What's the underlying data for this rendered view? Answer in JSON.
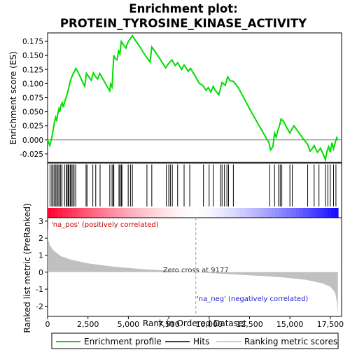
{
  "chart_data": {
    "type": "line",
    "title": "Enrichment plot:",
    "subtitle": "PROTEIN_TYROSINE_KINASE_ACTIVITY",
    "top_panel": {
      "ylabel": "Enrichment score (ES)",
      "ylim": [
        -0.04,
        0.19
      ],
      "yticks": [
        "-0.025",
        "0.000",
        "0.025",
        "0.050",
        "0.075",
        "0.100",
        "0.125",
        "0.150",
        "0.175"
      ],
      "ytick_values": [
        -0.025,
        0,
        0.025,
        0.05,
        0.075,
        0.1,
        0.125,
        0.15,
        0.175
      ],
      "series_color": "#00dd00",
      "es_points": [
        [
          0,
          0.0
        ],
        [
          140,
          -0.01
        ],
        [
          250,
          0.003
        ],
        [
          300,
          0.01
        ],
        [
          380,
          0.024
        ],
        [
          430,
          0.033
        ],
        [
          500,
          0.04
        ],
        [
          560,
          0.033
        ],
        [
          620,
          0.045
        ],
        [
          700,
          0.055
        ],
        [
          760,
          0.05
        ],
        [
          830,
          0.062
        ],
        [
          900,
          0.066
        ],
        [
          980,
          0.058
        ],
        [
          1060,
          0.068
        ],
        [
          1130,
          0.074
        ],
        [
          1200,
          0.08
        ],
        [
          1280,
          0.089
        ],
        [
          1350,
          0.097
        ],
        [
          1420,
          0.106
        ],
        [
          1500,
          0.112
        ],
        [
          1580,
          0.118
        ],
        [
          1660,
          0.121
        ],
        [
          1740,
          0.127
        ],
        [
          1850,
          0.122
        ],
        [
          2000,
          0.113
        ],
        [
          2150,
          0.104
        ],
        [
          2300,
          0.095
        ],
        [
          2400,
          0.118
        ],
        [
          2550,
          0.112
        ],
        [
          2700,
          0.106
        ],
        [
          2830,
          0.119
        ],
        [
          2950,
          0.113
        ],
        [
          3100,
          0.108
        ],
        [
          3230,
          0.118
        ],
        [
          3350,
          0.112
        ],
        [
          3600,
          0.099
        ],
        [
          3850,
          0.087
        ],
        [
          3900,
          0.099
        ],
        [
          3990,
          0.094
        ],
        [
          4040,
          0.12
        ],
        [
          4100,
          0.15
        ],
        [
          4200,
          0.144
        ],
        [
          4300,
          0.142
        ],
        [
          4400,
          0.158
        ],
        [
          4480,
          0.153
        ],
        [
          4560,
          0.175
        ],
        [
          4700,
          0.169
        ],
        [
          4850,
          0.163
        ],
        [
          4950,
          0.172
        ],
        [
          5050,
          0.177
        ],
        [
          5150,
          0.181
        ],
        [
          5250,
          0.185
        ],
        [
          5450,
          0.176
        ],
        [
          5700,
          0.166
        ],
        [
          6000,
          0.152
        ],
        [
          6150,
          0.146
        ],
        [
          6350,
          0.138
        ],
        [
          6450,
          0.165
        ],
        [
          6700,
          0.155
        ],
        [
          7000,
          0.142
        ],
        [
          7300,
          0.128
        ],
        [
          7500,
          0.136
        ],
        [
          7700,
          0.142
        ],
        [
          7900,
          0.132
        ],
        [
          8050,
          0.137
        ],
        [
          8300,
          0.125
        ],
        [
          8450,
          0.133
        ],
        [
          8700,
          0.122
        ],
        [
          8850,
          0.127
        ],
        [
          9100,
          0.115
        ],
        [
          9400,
          0.1
        ],
        [
          9600,
          0.097
        ],
        [
          9800,
          0.088
        ],
        [
          9950,
          0.093
        ],
        [
          10100,
          0.085
        ],
        [
          10250,
          0.095
        ],
        [
          10400,
          0.087
        ],
        [
          10600,
          0.08
        ],
        [
          10800,
          0.102
        ],
        [
          11000,
          0.097
        ],
        [
          11150,
          0.112
        ],
        [
          11300,
          0.105
        ],
        [
          11500,
          0.104
        ],
        [
          11800,
          0.093
        ],
        [
          12200,
          0.072
        ],
        [
          12600,
          0.05
        ],
        [
          13000,
          0.03
        ],
        [
          13400,
          0.01
        ],
        [
          13700,
          -0.005
        ],
        [
          13800,
          -0.018
        ],
        [
          13950,
          -0.012
        ],
        [
          14050,
          0.012
        ],
        [
          14150,
          0.005
        ],
        [
          14250,
          0.016
        ],
        [
          14350,
          0.025
        ],
        [
          14450,
          0.037
        ],
        [
          14600,
          0.033
        ],
        [
          14800,
          0.022
        ],
        [
          15000,
          0.012
        ],
        [
          15100,
          0.018
        ],
        [
          15250,
          0.025
        ],
        [
          15500,
          0.015
        ],
        [
          15800,
          0.003
        ],
        [
          16100,
          -0.008
        ],
        [
          16250,
          -0.02
        ],
        [
          16400,
          -0.015
        ],
        [
          16500,
          -0.01
        ],
        [
          16700,
          -0.022
        ],
        [
          16900,
          -0.015
        ],
        [
          17100,
          -0.028
        ],
        [
          17200,
          -0.035
        ],
        [
          17300,
          -0.02
        ],
        [
          17400,
          -0.012
        ],
        [
          17500,
          -0.022
        ],
        [
          17600,
          -0.005
        ],
        [
          17700,
          -0.016
        ],
        [
          17800,
          -0.005
        ],
        [
          17900,
          0.004
        ],
        [
          17950,
          0.0
        ]
      ]
    },
    "hits_panel": {
      "hit_positions": [
        150,
        260,
        340,
        420,
        510,
        580,
        650,
        730,
        810,
        890,
        1050,
        1160,
        1210,
        1280,
        1330,
        1410,
        1480,
        1560,
        1640,
        1740,
        2380,
        2440,
        2800,
        2980,
        3250,
        3850,
        3990,
        4070,
        4100,
        4420,
        4480,
        4560,
        4600,
        4990,
        5130,
        5250,
        6150,
        6450,
        7350,
        7500,
        7600,
        7720,
        8050,
        8450,
        8800,
        9650,
        10000,
        10250,
        10700,
        10800,
        10950,
        11100,
        11200,
        11500,
        13750,
        14050,
        14300,
        14400,
        14500,
        15000,
        15150,
        16100,
        16500,
        16800,
        17200,
        17350,
        17500,
        17700,
        17850
      ]
    },
    "bottom_panel": {
      "ylabel": "Ranked list metric (PreRanked)",
      "xlabel": "Rank in Ordered Dataset",
      "ylim": [
        -2.6,
        3.2
      ],
      "yticks": [
        "-2",
        "-1",
        "0",
        "1",
        "2",
        "3"
      ],
      "ytick_values": [
        -2,
        -1,
        0,
        1,
        2,
        3
      ],
      "xlim": [
        0,
        18200
      ],
      "xticks": [
        "0",
        "2,500",
        "5,000",
        "7,500",
        "10,000",
        "12,500",
        "15,000",
        "17,500"
      ],
      "xtick_values": [
        0,
        2500,
        5000,
        7500,
        10000,
        12500,
        15000,
        17500
      ],
      "zero_cross_label": "Zero cross at 9177",
      "zero_cross": 9177,
      "pos_label": "'na_pos' (positively correlated)",
      "neg_label": "'na_neg' (negatively correlated)",
      "metric_points": [
        [
          0,
          2.7
        ],
        [
          40,
          1.9
        ],
        [
          150,
          1.55
        ],
        [
          400,
          1.25
        ],
        [
          800,
          0.95
        ],
        [
          1500,
          0.72
        ],
        [
          2500,
          0.52
        ],
        [
          4000,
          0.33
        ],
        [
          6000,
          0.17
        ],
        [
          8000,
          0.06
        ],
        [
          9177,
          0.0
        ],
        [
          10500,
          -0.08
        ],
        [
          12500,
          -0.18
        ],
        [
          14500,
          -0.3
        ],
        [
          16000,
          -0.45
        ],
        [
          17000,
          -0.65
        ],
        [
          17500,
          -0.85
        ],
        [
          17800,
          -1.2
        ],
        [
          17920,
          -1.8
        ],
        [
          17970,
          -2.5
        ]
      ]
    },
    "legend": {
      "items": [
        {
          "label": "Enrichment profile",
          "color": "#00dd00"
        },
        {
          "label": "Hits",
          "color": "#000000"
        },
        {
          "label": "Ranking metric scores",
          "color": "#bbbbbb"
        }
      ]
    }
  }
}
